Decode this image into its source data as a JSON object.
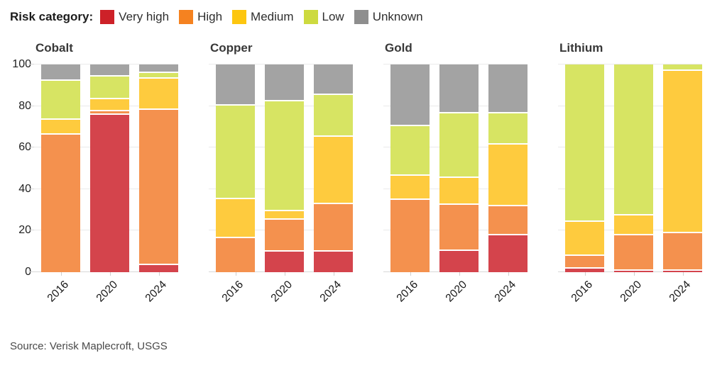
{
  "legend": {
    "title": "Risk category:",
    "items": [
      {
        "label": "Very high",
        "color": "#cd2128"
      },
      {
        "label": "High",
        "color": "#f58220"
      },
      {
        "label": "Medium",
        "color": "#fdc60f"
      },
      {
        "label": "Low",
        "color": "#cdda3f"
      },
      {
        "label": "Unknown",
        "color": "#8e8e8e"
      }
    ]
  },
  "source": "Source: Verisk Maplecroft, USGS",
  "chart_data": {
    "type": "bar",
    "stacked": true,
    "unit": "percent_of_production",
    "categories": [
      "2016",
      "2020",
      "2024"
    ],
    "y_axis": {
      "ticks": [
        0,
        20,
        40,
        60,
        80,
        100
      ],
      "min": 0,
      "max": 100
    },
    "risk_levels": [
      "Very high",
      "High",
      "Medium",
      "Low",
      "Unknown"
    ],
    "bar_colors": {
      "Very high": "#d4444c",
      "High": "#f4914e",
      "Medium": "#fecb3e",
      "Low": "#d7e463",
      "Unknown": "#a3a3a3"
    },
    "grid": true,
    "legend_position": "top",
    "panels": [
      {
        "title": "Cobalt",
        "series": [
          {
            "year": "2016",
            "values": {
              "Very high": 0,
              "High": 67,
              "Medium": 7,
              "Low": 19,
              "Unknown": 7
            }
          },
          {
            "year": "2020",
            "values": {
              "Very high": 76.5,
              "High": 1.5,
              "Medium": 6,
              "Low": 11,
              "Unknown": 5
            }
          },
          {
            "year": "2024",
            "values": {
              "Very high": 4,
              "High": 75,
              "Medium": 15,
              "Low": 2.5,
              "Unknown": 3.5
            }
          }
        ]
      },
      {
        "title": "Copper",
        "series": [
          {
            "year": "2016",
            "values": {
              "Very high": 0,
              "High": 17,
              "Medium": 19,
              "Low": 45,
              "Unknown": 19
            }
          },
          {
            "year": "2020",
            "values": {
              "Very high": 10.5,
              "High": 15.5,
              "Medium": 4,
              "Low": 53,
              "Unknown": 17
            }
          },
          {
            "year": "2024",
            "values": {
              "Very high": 10.5,
              "High": 23,
              "Medium": 32.5,
              "Low": 20,
              "Unknown": 14
            }
          }
        ]
      },
      {
        "title": "Gold",
        "series": [
          {
            "year": "2016",
            "values": {
              "Very high": 0,
              "High": 35.5,
              "Medium": 11.5,
              "Low": 24,
              "Unknown": 29
            }
          },
          {
            "year": "2020",
            "values": {
              "Very high": 11,
              "High": 22,
              "Medium": 13,
              "Low": 31,
              "Unknown": 23
            }
          },
          {
            "year": "2024",
            "values": {
              "Very high": 18.5,
              "High": 14,
              "Medium": 29.5,
              "Low": 15,
              "Unknown": 23
            }
          }
        ]
      },
      {
        "title": "Lithium",
        "series": [
          {
            "year": "2016",
            "values": {
              "Very high": 2.5,
              "High": 6,
              "Medium": 16.5,
              "Low": 75,
              "Unknown": 0
            }
          },
          {
            "year": "2020",
            "values": {
              "Very high": 1.5,
              "High": 17,
              "Medium": 9.5,
              "Low": 72,
              "Unknown": 0
            }
          },
          {
            "year": "2024",
            "values": {
              "Very high": 1.5,
              "High": 18,
              "Medium": 78,
              "Low": 2.5,
              "Unknown": 0
            }
          }
        ]
      }
    ]
  }
}
